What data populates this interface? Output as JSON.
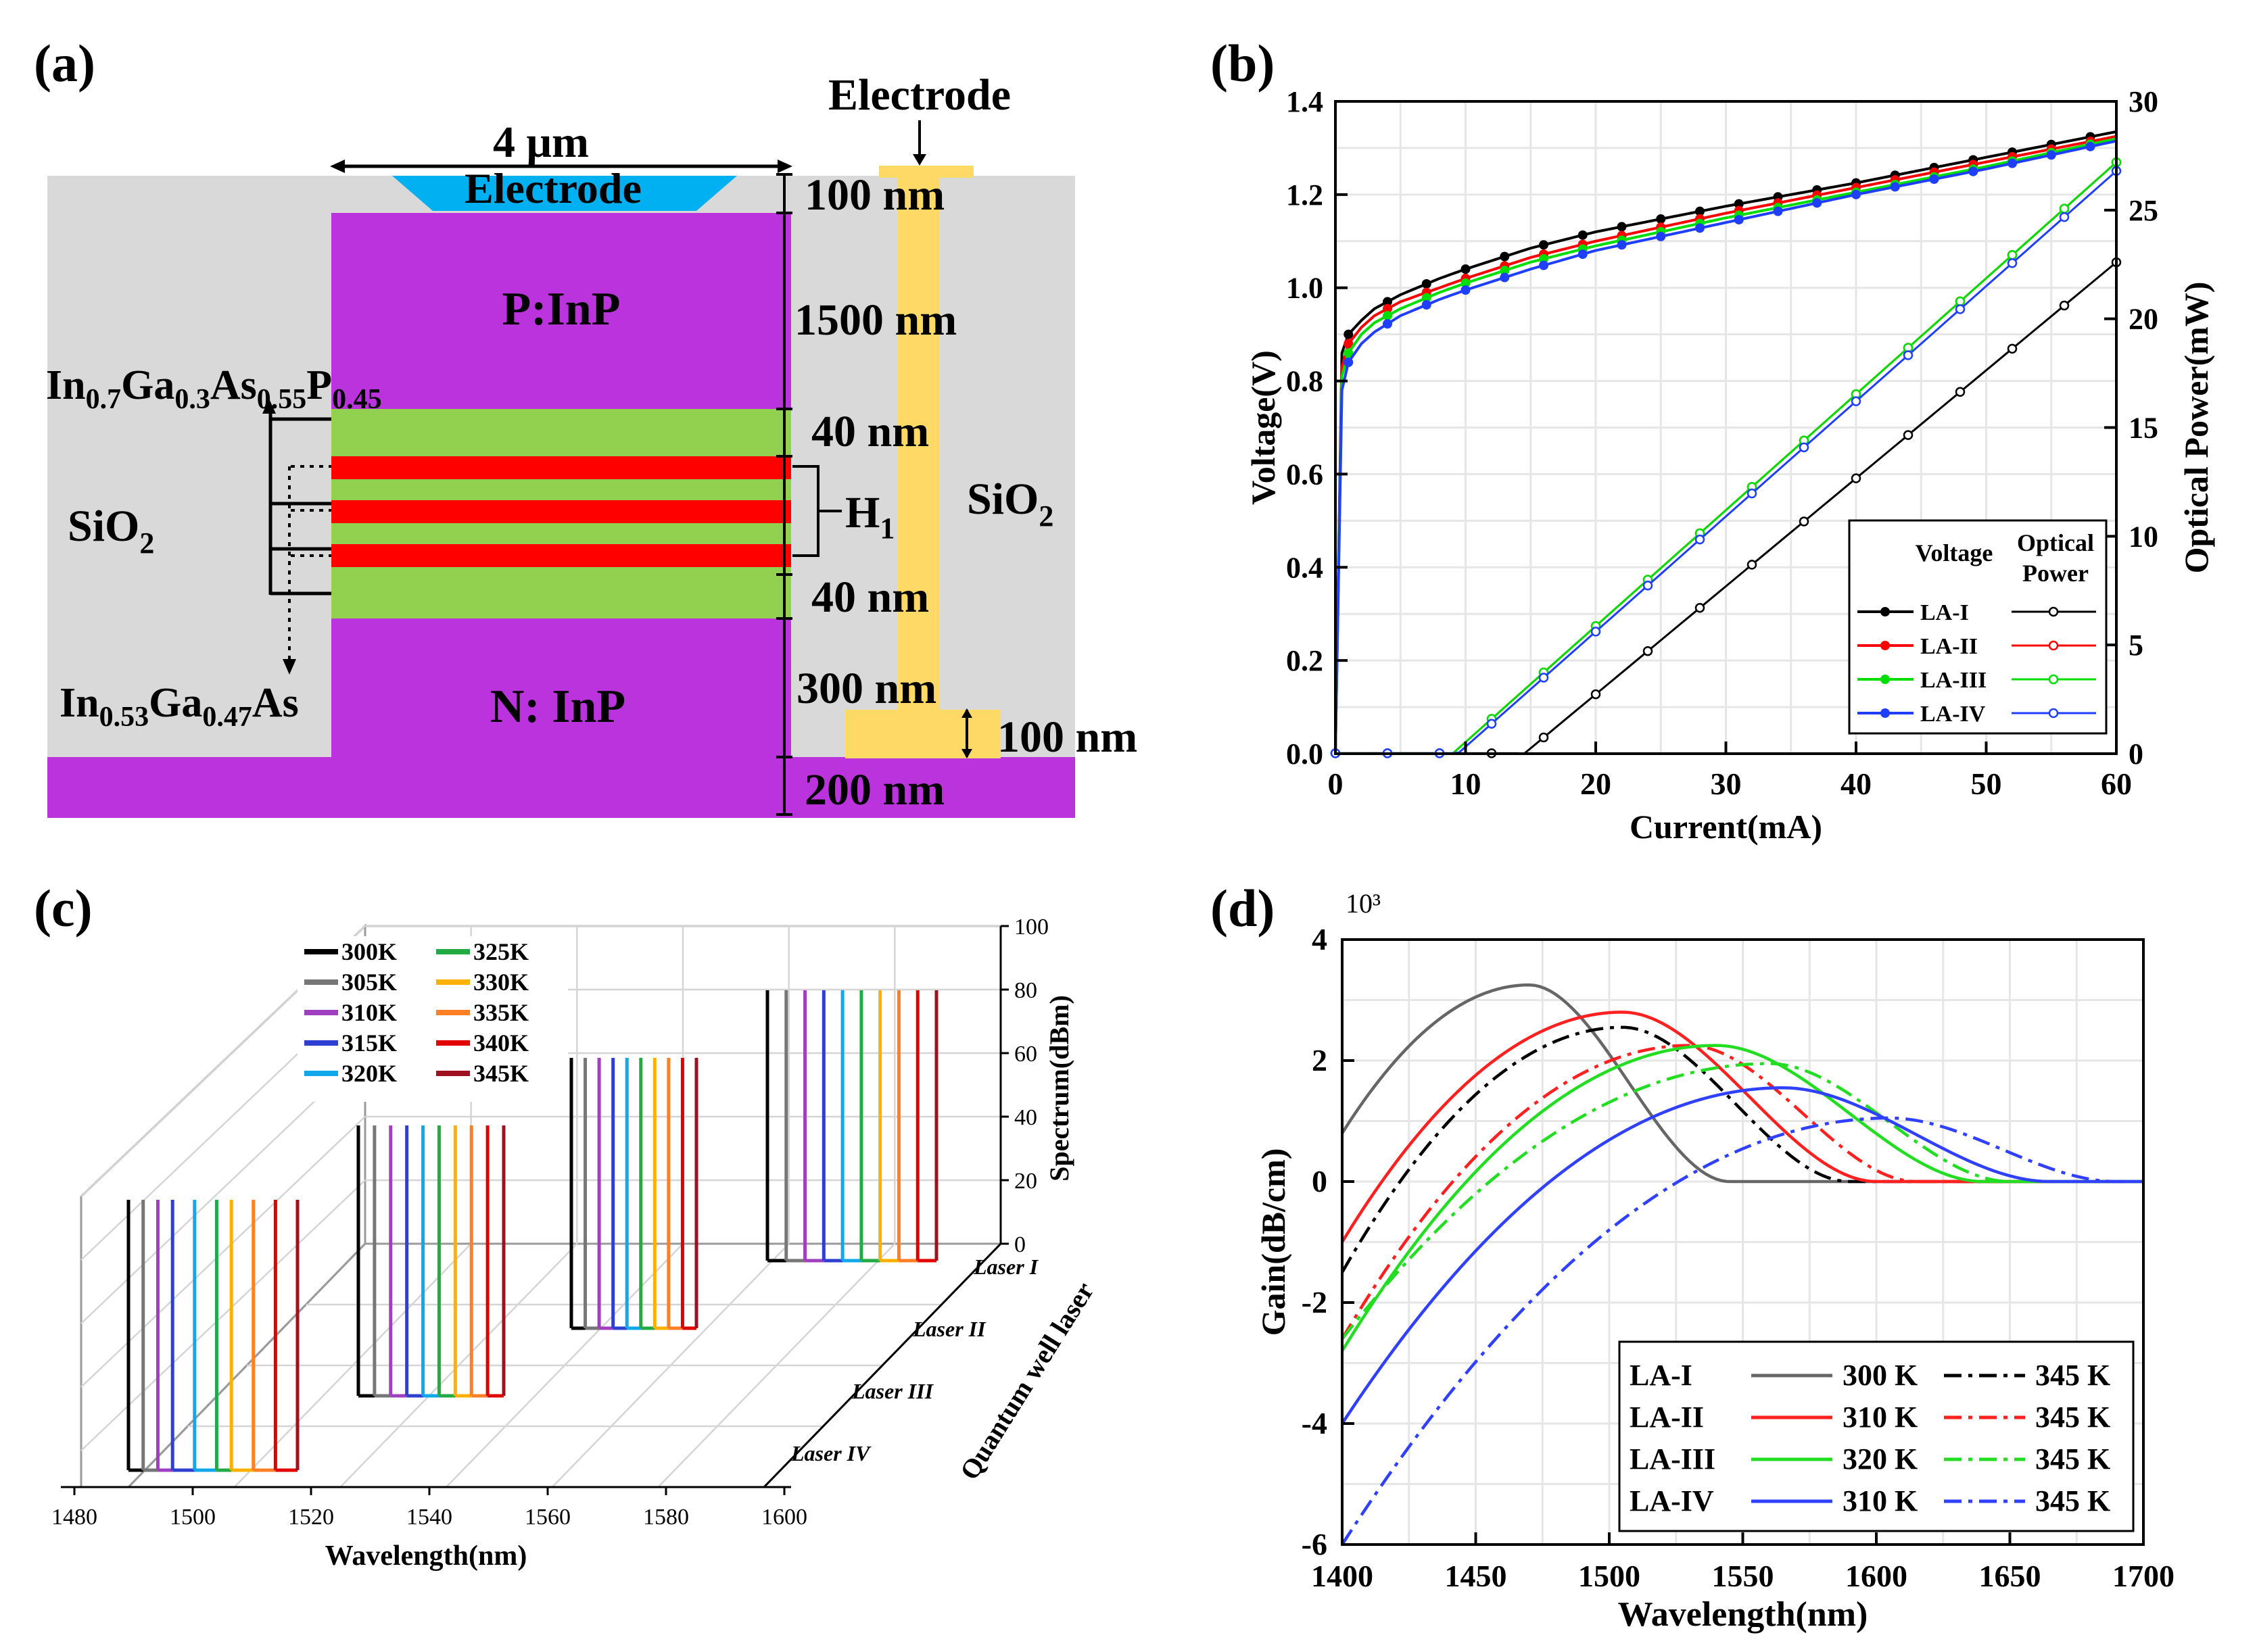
{
  "panels": {
    "a": {
      "label": "(a)",
      "width_label": "4 μm",
      "electrode_top": "Electrode",
      "electrode_side": "Electrode",
      "p_label": "P:InP",
      "n_label": "N: InP",
      "sio2_left": "SiO",
      "sio2_right": "SiO",
      "sub2": "2",
      "h1_main": "H",
      "h1_sub": "1",
      "barrier_parts": [
        {
          "t": "In",
          "s": false
        },
        {
          "t": "0.7",
          "s": true
        },
        {
          "t": "Ga",
          "s": false
        },
        {
          "t": "0.3",
          "s": true
        },
        {
          "t": "As",
          "s": false
        },
        {
          "t": "0.55",
          "s": true
        },
        {
          "t": "P",
          "s": false
        },
        {
          "t": "0.45",
          "s": true
        }
      ],
      "well_parts": [
        {
          "t": "In",
          "s": false
        },
        {
          "t": "0.53",
          "s": true
        },
        {
          "t": "Ga",
          "s": false
        },
        {
          "t": "0.47",
          "s": true
        },
        {
          "t": "As",
          "s": false
        }
      ],
      "dims": {
        "electrode": "100 nm",
        "p_inp": "1500 nm",
        "barrier_top": "40 nm",
        "barrier_bottom": "40 nm",
        "n_inp": "300 nm",
        "pad": "100 nm",
        "substrate": "200 nm"
      },
      "colors": {
        "sio2": "#d9d9d9",
        "inp": "#bb33dd",
        "barrier": "#92d050",
        "well": "#ff0000",
        "electrode": "#00b0f0",
        "side_electrode": "#ffd966"
      }
    },
    "b": {
      "label": "(b)"
    },
    "c": {
      "label": "(c)"
    },
    "d": {
      "label": "(d)"
    }
  },
  "chart_data": [
    {
      "id": "b",
      "type": "line",
      "xlabel": "Current(mA)",
      "ylabel": "Voltage(V)",
      "y2label": "Optical Power(mW)",
      "xlim": [
        0,
        60
      ],
      "ylim": [
        0,
        1.4
      ],
      "y2lim": [
        0,
        30
      ],
      "xticks": [
        "0",
        "10",
        "20",
        "30",
        "40",
        "50",
        "60"
      ],
      "yticks": [
        "0.0",
        "0.2",
        "0.4",
        "0.6",
        "0.8",
        "1.0",
        "1.2",
        "1.4"
      ],
      "y2ticks": [
        "0",
        "5",
        "10",
        "15",
        "20",
        "25",
        "30"
      ],
      "grid": true,
      "legend": {
        "col1": "Voltage",
        "col2_line1": "Optical",
        "col2_line2": "Power",
        "labels": [
          "LA-I",
          "LA-II",
          "LA-III",
          "LA-IV"
        ]
      },
      "series": [
        {
          "name": "LA-I",
          "color": "#000000",
          "voltage": [
            [
              0,
              0
            ],
            [
              0.5,
              0.86
            ],
            [
              1,
              0.9
            ],
            [
              2,
              0.93
            ],
            [
              3,
              0.955
            ],
            [
              5,
              0.985
            ],
            [
              8,
              1.02
            ],
            [
              10,
              1.04
            ],
            [
              15,
              1.085
            ],
            [
              20,
              1.12
            ],
            [
              30,
              1.175
            ],
            [
              40,
              1.225
            ],
            [
              50,
              1.28
            ],
            [
              60,
              1.335
            ]
          ],
          "power_threshold": 14.5,
          "power_max": 22.6
        },
        {
          "name": "LA-II",
          "color": "#ff0000",
          "voltage": [
            [
              0,
              0
            ],
            [
              0.5,
              0.83
            ],
            [
              1,
              0.88
            ],
            [
              2,
              0.915
            ],
            [
              3,
              0.94
            ],
            [
              5,
              0.97
            ],
            [
              8,
              1.0
            ],
            [
              10,
              1.02
            ],
            [
              15,
              1.065
            ],
            [
              20,
              1.1
            ],
            [
              30,
              1.16
            ],
            [
              40,
              1.215
            ],
            [
              50,
              1.27
            ],
            [
              60,
              1.325
            ]
          ],
          "power_threshold": 9.0,
          "power_max": 27.2
        },
        {
          "name": "LA-III",
          "color": "#00dd00",
          "voltage": [
            [
              0,
              0
            ],
            [
              0.5,
              0.81
            ],
            [
              1,
              0.86
            ],
            [
              2,
              0.9
            ],
            [
              3,
              0.925
            ],
            [
              5,
              0.955
            ],
            [
              8,
              0.99
            ],
            [
              10,
              1.01
            ],
            [
              15,
              1.055
            ],
            [
              20,
              1.09
            ],
            [
              30,
              1.15
            ],
            [
              40,
              1.205
            ],
            [
              50,
              1.26
            ],
            [
              60,
              1.32
            ]
          ],
          "power_threshold": 9.0,
          "power_max": 27.2
        },
        {
          "name": "LA-IV",
          "color": "#1f3fff",
          "voltage": [
            [
              0,
              0
            ],
            [
              0.5,
              0.78
            ],
            [
              1,
              0.84
            ],
            [
              2,
              0.88
            ],
            [
              3,
              0.905
            ],
            [
              5,
              0.94
            ],
            [
              8,
              0.975
            ],
            [
              10,
              0.995
            ],
            [
              15,
              1.04
            ],
            [
              20,
              1.08
            ],
            [
              30,
              1.14
            ],
            [
              40,
              1.2
            ],
            [
              50,
              1.255
            ],
            [
              60,
              1.315
            ]
          ],
          "power_threshold": 9.4,
          "power_max": 26.8
        }
      ]
    },
    {
      "id": "c",
      "type": "line",
      "xlabel": "Wavelength(nm)",
      "zlabel": "Spectrum(dBm)",
      "ylabel": "Quantum well laser",
      "xticks": [
        "1480",
        "1500",
        "1520",
        "1540",
        "1560",
        "1580",
        "1600"
      ],
      "zticks": [
        "0",
        "20",
        "40",
        "60",
        "80",
        "100"
      ],
      "yticks": [
        "Laser I",
        "Laser II",
        "Laser III",
        "Laser IV"
      ],
      "legend": [
        {
          "name": "300K",
          "color": "#000000"
        },
        {
          "name": "325K",
          "color": "#22aa44"
        },
        {
          "name": "305K",
          "color": "#777777"
        },
        {
          "name": "330K",
          "color": "#ffb000"
        },
        {
          "name": "310K",
          "color": "#a040c0"
        },
        {
          "name": "335K",
          "color": "#ff7f27"
        },
        {
          "name": "315K",
          "color": "#2f3fd0"
        },
        {
          "name": "340K",
          "color": "#e00000"
        },
        {
          "name": "320K",
          "color": "#10a8e8"
        },
        {
          "name": "345K",
          "color": "#a01020"
        }
      ],
      "peak_height_dBm": 80,
      "lasers": [
        {
          "name": "Laser IV",
          "peaks_nm": [
            1488,
            1490,
            1492,
            1494,
            1497,
            1500,
            1502,
            1505,
            1508,
            1511
          ]
        },
        {
          "name": "Laser III",
          "peaks_nm": [
            1520,
            1522,
            1524,
            1526,
            1528,
            1530,
            1532,
            1534,
            1536,
            1538
          ]
        },
        {
          "name": "Laser II",
          "peaks_nm": [
            1550,
            1552,
            1554,
            1556,
            1558,
            1560,
            1562,
            1564,
            1566,
            1568
          ]
        },
        {
          "name": "Laser I",
          "peaks_nm": [
            1580,
            1582,
            1584,
            1586,
            1588,
            1590,
            1592,
            1594,
            1596,
            1598
          ]
        }
      ]
    },
    {
      "id": "d",
      "type": "line",
      "xlabel": "Wavelength(nm)",
      "ylabel": "Gain(dB/cm)",
      "multiplier": "10³",
      "xlim": [
        1400,
        1700
      ],
      "ylim": [
        -6,
        4
      ],
      "xticks": [
        "1400",
        "1450",
        "1500",
        "1550",
        "1600",
        "1650",
        "1700"
      ],
      "yticks": [
        "-6",
        "-4",
        "-2",
        "0",
        "2",
        "4"
      ],
      "grid": true,
      "legend": [
        {
          "name": "LA-I",
          "solid": "300 K",
          "dashed": "345 K",
          "color": "#666666",
          "dash_color": "#000000"
        },
        {
          "name": "LA-II",
          "solid": "310 K",
          "dashed": "345 K",
          "color": "#ff2020",
          "dash_color": "#ff2020"
        },
        {
          "name": "LA-III",
          "solid": "320 K",
          "dashed": "345 K",
          "color": "#22dd22",
          "dash_color": "#22dd22"
        },
        {
          "name": "LA-IV",
          "solid": "310 K",
          "dashed": "345 K",
          "color": "#3040ff",
          "dash_color": "#3040ff"
        }
      ],
      "series": [
        {
          "name": "LA-I 300 K",
          "color": "#666666",
          "dashed": false,
          "start": 0.8,
          "peak_x": 1470,
          "peak_y": 3.25,
          "zero_x": 1545
        },
        {
          "name": "LA-I 345 K",
          "color": "#000000",
          "dashed": true,
          "start": -1.5,
          "peak_x": 1505,
          "peak_y": 2.55,
          "zero_x": 1590
        },
        {
          "name": "LA-II 310 K",
          "color": "#ff2020",
          "dashed": false,
          "start": -1.0,
          "peak_x": 1505,
          "peak_y": 2.8,
          "zero_x": 1600
        },
        {
          "name": "LA-II 345 K",
          "color": "#ff2020",
          "dashed": true,
          "start": -2.6,
          "peak_x": 1530,
          "peak_y": 2.25,
          "zero_x": 1615
        },
        {
          "name": "LA-III 320 K",
          "color": "#22dd22",
          "dashed": false,
          "start": -2.8,
          "peak_x": 1540,
          "peak_y": 2.25,
          "zero_x": 1640
        },
        {
          "name": "LA-III 345 K",
          "color": "#22dd22",
          "dashed": true,
          "start": -2.6,
          "peak_x": 1560,
          "peak_y": 1.95,
          "zero_x": 1650
        },
        {
          "name": "LA-IV 310 K",
          "color": "#3040ff",
          "dashed": false,
          "start": -4.0,
          "peak_x": 1565,
          "peak_y": 1.55,
          "zero_x": 1665
        },
        {
          "name": "LA-IV 345 K",
          "color": "#3040ff",
          "dashed": true,
          "start": -6.0,
          "peak_x": 1605,
          "peak_y": 1.05,
          "zero_x": 1690
        }
      ]
    }
  ]
}
